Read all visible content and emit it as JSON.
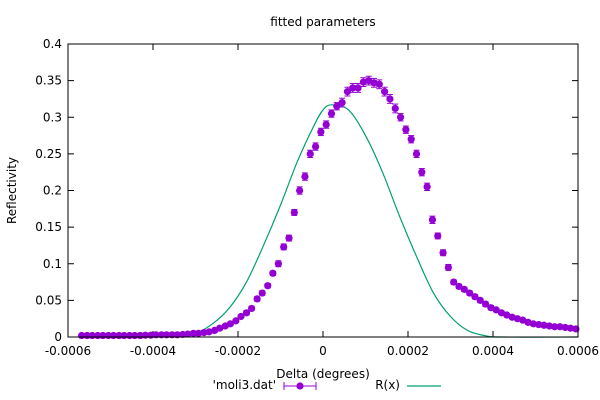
{
  "colors": {
    "measured": "#9400d3",
    "model": "#009e73",
    "frame": "#000000"
  },
  "chart_data": {
    "type": "scatter",
    "title": "fitted parameters",
    "xlabel": "Delta (degrees)",
    "ylabel": "Reflectivity",
    "xlim": [
      -0.0006,
      0.0006
    ],
    "ylim": [
      0,
      0.4
    ],
    "xticks": [
      -0.0006,
      -0.0004,
      -0.0002,
      0,
      0.0002,
      0.0004,
      0.0006
    ],
    "xtick_labels": [
      "-0.0006",
      "-0.0004",
      "-0.0002",
      "0",
      "0.0002",
      "0.0004",
      "0.0006"
    ],
    "yticks": [
      0,
      0.05,
      0.1,
      0.15,
      0.2,
      0.25,
      0.3,
      0.35,
      0.4
    ],
    "ytick_labels": [
      "0",
      "0.05",
      "0.1",
      "0.15",
      "0.2",
      "0.25",
      "0.3",
      "0.35",
      "0.4"
    ],
    "legend_position": "bottom",
    "grid": false,
    "series": [
      {
        "name": "'moli3.dat'",
        "style": "points-with-errorbars",
        "color": "#9400d3",
        "points": [
          [
            -0.000568,
            0.002,
            0.0015
          ],
          [
            -0.000555,
            0.002,
            0.0015
          ],
          [
            -0.000543,
            0.002,
            0.0015
          ],
          [
            -0.00053,
            0.002,
            0.0015
          ],
          [
            -0.000518,
            0.002,
            0.0015
          ],
          [
            -0.000505,
            0.002,
            0.0015
          ],
          [
            -0.000493,
            0.002,
            0.0015
          ],
          [
            -0.00048,
            0.002,
            0.0015
          ],
          [
            -0.000468,
            0.002,
            0.0015
          ],
          [
            -0.000455,
            0.002,
            0.0015
          ],
          [
            -0.000443,
            0.002,
            0.0015
          ],
          [
            -0.00043,
            0.002,
            0.0015
          ],
          [
            -0.000418,
            0.0025,
            0.0015
          ],
          [
            -0.000405,
            0.0025,
            0.0015
          ],
          [
            -0.000393,
            0.003,
            0.0015
          ],
          [
            -0.00038,
            0.003,
            0.0015
          ],
          [
            -0.000368,
            0.003,
            0.0015
          ],
          [
            -0.000355,
            0.003,
            0.0015
          ],
          [
            -0.000343,
            0.003,
            0.0015
          ],
          [
            -0.00033,
            0.0035,
            0.0015
          ],
          [
            -0.000318,
            0.004,
            0.0015
          ],
          [
            -0.000305,
            0.005,
            0.0015
          ],
          [
            -0.000293,
            0.005,
            0.0015
          ],
          [
            -0.00028,
            0.006,
            0.0015
          ],
          [
            -0.000268,
            0.007,
            0.0015
          ],
          [
            -0.000255,
            0.009,
            0.0015
          ],
          [
            -0.000243,
            0.012,
            0.002
          ],
          [
            -0.00023,
            0.015,
            0.002
          ],
          [
            -0.000218,
            0.018,
            0.002
          ],
          [
            -0.000205,
            0.022,
            0.002
          ],
          [
            -0.000193,
            0.028,
            0.002
          ],
          [
            -0.00018,
            0.033,
            0.003
          ],
          [
            -0.000168,
            0.039,
            0.003
          ],
          [
            -0.000155,
            0.052,
            0.003
          ],
          [
            -0.000143,
            0.06,
            0.003
          ],
          [
            -0.00013,
            0.07,
            0.003
          ],
          [
            -0.000118,
            0.087,
            0.003
          ],
          [
            -0.000105,
            0.1,
            0.004
          ],
          [
            -9.25e-05,
            0.123,
            0.004
          ],
          [
            -8e-05,
            0.135,
            0.004
          ],
          [
            -6.75e-05,
            0.17,
            0.004
          ],
          [
            -5.5e-05,
            0.2,
            0.005
          ],
          [
            -4.25e-05,
            0.219,
            0.005
          ],
          [
            -3e-05,
            0.25,
            0.005
          ],
          [
            -1.75e-05,
            0.26,
            0.005
          ],
          [
            -5e-06,
            0.28,
            0.005
          ],
          [
            7.5e-06,
            0.29,
            0.005
          ],
          [
            2e-05,
            0.305,
            0.005
          ],
          [
            3.25e-05,
            0.315,
            0.005
          ],
          [
            4.5e-05,
            0.32,
            0.006
          ],
          [
            5.75e-05,
            0.335,
            0.006
          ],
          [
            7e-05,
            0.34,
            0.006
          ],
          [
            8.25e-05,
            0.34,
            0.006
          ],
          [
            9.5e-05,
            0.348,
            0.006
          ],
          [
            0.0001075,
            0.35,
            0.006
          ],
          [
            0.00012,
            0.347,
            0.006
          ],
          [
            0.0001325,
            0.345,
            0.006
          ],
          [
            0.000145,
            0.335,
            0.006
          ],
          [
            0.0001575,
            0.325,
            0.006
          ],
          [
            0.00017,
            0.312,
            0.006
          ],
          [
            0.0001825,
            0.3,
            0.005
          ],
          [
            0.000195,
            0.283,
            0.005
          ],
          [
            0.0002075,
            0.27,
            0.005
          ],
          [
            0.00022,
            0.25,
            0.005
          ],
          [
            0.0002325,
            0.225,
            0.005
          ],
          [
            0.000245,
            0.205,
            0.005
          ],
          [
            0.0002575,
            0.16,
            0.005
          ],
          [
            0.00027,
            0.138,
            0.004
          ],
          [
            0.0002825,
            0.115,
            0.004
          ],
          [
            0.000295,
            0.095,
            0.004
          ],
          [
            0.0003075,
            0.075,
            0.003
          ],
          [
            0.00032,
            0.069,
            0.003
          ],
          [
            0.0003325,
            0.065,
            0.003
          ],
          [
            0.000345,
            0.06,
            0.003
          ],
          [
            0.0003575,
            0.055,
            0.003
          ],
          [
            0.00037,
            0.05,
            0.003
          ],
          [
            0.0003825,
            0.045,
            0.003
          ],
          [
            0.000395,
            0.04,
            0.003
          ],
          [
            0.0004075,
            0.037,
            0.002
          ],
          [
            0.00042,
            0.033,
            0.002
          ],
          [
            0.0004325,
            0.03,
            0.002
          ],
          [
            0.000445,
            0.027,
            0.002
          ],
          [
            0.0004575,
            0.025,
            0.002
          ],
          [
            0.00047,
            0.023,
            0.002
          ],
          [
            0.0004825,
            0.02,
            0.002
          ],
          [
            0.000495,
            0.018,
            0.002
          ],
          [
            0.0005075,
            0.017,
            0.002
          ],
          [
            0.00052,
            0.016,
            0.002
          ],
          [
            0.0005325,
            0.015,
            0.002
          ],
          [
            0.000545,
            0.014,
            0.002
          ],
          [
            0.0005575,
            0.014,
            0.002
          ],
          [
            0.00057,
            0.013,
            0.002
          ],
          [
            0.0005825,
            0.012,
            0.002
          ],
          [
            0.000595,
            0.011,
            0.002
          ]
        ]
      },
      {
        "name": "R(x)",
        "style": "line",
        "color": "#009e73",
        "points": [
          [
            -0.000568,
            0
          ],
          [
            -0.0004,
            0
          ],
          [
            -0.00034,
            0.001
          ],
          [
            -0.0003,
            0.005
          ],
          [
            -0.00026,
            0.018
          ],
          [
            -0.00022,
            0.04
          ],
          [
            -0.00018,
            0.075
          ],
          [
            -0.00014,
            0.125
          ],
          [
            -0.0001,
            0.18
          ],
          [
            -6e-05,
            0.24
          ],
          [
            -2e-05,
            0.29
          ],
          [
            0,
            0.31
          ],
          [
            2e-05,
            0.317
          ],
          [
            6e-05,
            0.31
          ],
          [
            0.0001,
            0.275
          ],
          [
            0.00014,
            0.225
          ],
          [
            0.00018,
            0.165
          ],
          [
            0.00022,
            0.11
          ],
          [
            0.00026,
            0.06
          ],
          [
            0.0003,
            0.028
          ],
          [
            0.00034,
            0.009
          ],
          [
            0.00038,
            0.002
          ],
          [
            0.00042,
            0
          ],
          [
            0.0006,
            0
          ]
        ]
      }
    ]
  }
}
